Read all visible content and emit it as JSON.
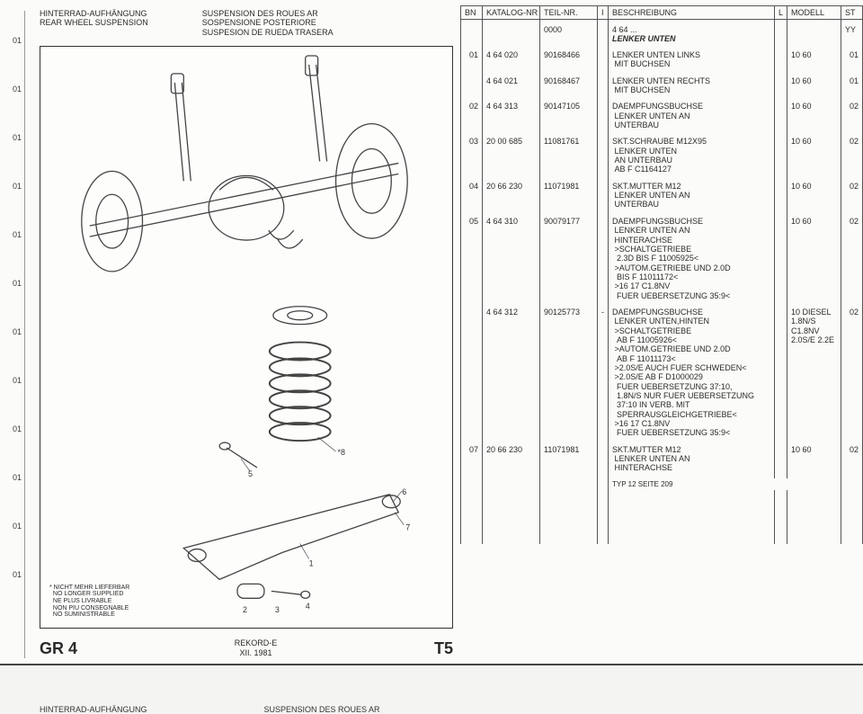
{
  "left_marks": [
    "01",
    "01",
    "01",
    "01",
    "01",
    "01",
    "01",
    "01",
    "01",
    "01",
    "01",
    "01"
  ],
  "titles": {
    "col1": "HINTERRAD-AUFHÄNGUNG\nREAR WHEEL SUSPENSION",
    "col2": "SUSPENSION DES ROUES AR\nSOSPENSIONE POSTERIORE\nSUSPESION DE RUEDA TRASERA"
  },
  "note": "* NICHT MEHR LIEFERBAR\n  NO LONGER SUPPLIED\n  NE PLUS LIVRABLE\n  NON PIU CONSEGNABLE\n  NO SUMINISTRABLE",
  "footer": {
    "gr": "GR 4",
    "model": "REKORD-E",
    "date": "XII. 1981",
    "code": "T5"
  },
  "columns": {
    "bn": "BN",
    "kat": "KATALOG-NR",
    "teil": "TEIL-NR.",
    "i": "I",
    "desc": "BESCHREIBUNG",
    "l": "L",
    "mod": "MODELL",
    "st": "ST"
  },
  "header_row": {
    "teil": "0000",
    "desc_num": "4 64 ...",
    "desc_title": "LENKER UNTEN",
    "st": "YY"
  },
  "rows": [
    {
      "bn": "01",
      "kat": "4 64 020",
      "teil": "90168466",
      "desc": "LENKER UNTEN LINKS\n MIT BUCHSEN",
      "mod": "10 60",
      "st": "01"
    },
    {
      "bn": "",
      "kat": "4 64 021",
      "teil": "90168467",
      "desc": "LENKER UNTEN RECHTS\n MIT BUCHSEN",
      "mod": "10 60",
      "st": "01"
    },
    {
      "bn": "02",
      "kat": "4 64 313",
      "teil": "90147105",
      "desc": "DAEMPFUNGSBUCHSE\n LENKER UNTEN AN\n UNTERBAU",
      "mod": "10 60",
      "st": "02"
    },
    {
      "bn": "03",
      "kat": "20 00 685",
      "teil": "11081761",
      "desc": "SKT.SCHRAUBE M12X95\n LENKER UNTEN\n AN UNTERBAU\n AB F C1164127",
      "mod": "10 60",
      "st": "02"
    },
    {
      "bn": "04",
      "kat": "20 66 230",
      "teil": "11071981",
      "desc": "SKT.MUTTER M12\n LENKER UNTEN AN\n UNTERBAU",
      "mod": "10 60",
      "st": "02"
    },
    {
      "bn": "05",
      "kat": "4 64 310",
      "teil": "90079177",
      "desc": "DAEMPFUNGSBUCHSE\n LENKER UNTEN AN\n HINTERACHSE\n >SCHALTGETRIEBE\n  2.3D BIS F 11005925<\n >AUTOM.GETRIEBE UND 2.0D\n  BIS F 11011172<\n >16 17 C1.8NV\n  FUER UEBERSETZUNG 35:9<",
      "mod": "10 60",
      "st": "02"
    },
    {
      "bn": "",
      "kat": "4 64 312",
      "teil": "90125773",
      "i": "-",
      "desc": "DAEMPFUNGSBUCHSE\n LENKER UNTEN,HINTEN\n >SCHALTGETRIEBE\n  AB F 11005926<\n >AUTOM.GETRIEBE UND 2.0D\n  AB F 11011173<\n >2.0S/E AUCH FUER SCHWEDEN<\n >2.0S/E AB F D1000029\n  FUER UEBERSETZUNG 37:10,\n  1.8N/S NUR FUER UEBERSETZUNG\n  37:10 IN VERB. MIT\n  SPERRAUSGLEICHGETRIEBE<\n >16 17 C1.8NV\n  FUER UEBERSETZUNG 35:9<",
      "mod": "10 DIESEL\n1.8N/S\nC1.8NV\n2.0S/E 2.2E",
      "st": "02"
    },
    {
      "bn": "07",
      "kat": "20 66 230",
      "teil": "11071981",
      "desc": "SKT.MUTTER M12\n LENKER UNTEN AN\n HINTERACHSE",
      "mod": "10 60",
      "st": "02"
    }
  ],
  "typ_note": "TYP 12 SEITE  209",
  "bottom_repeat": {
    "a": "HINTERRAD-AUFHÄNGUNG",
    "b": "SUSPENSION DES ROUES AR"
  },
  "diagram": {
    "callouts": [
      "1",
      "2",
      "3",
      "4",
      "5",
      "6",
      "7",
      "*8"
    ],
    "stroke": "#444"
  }
}
